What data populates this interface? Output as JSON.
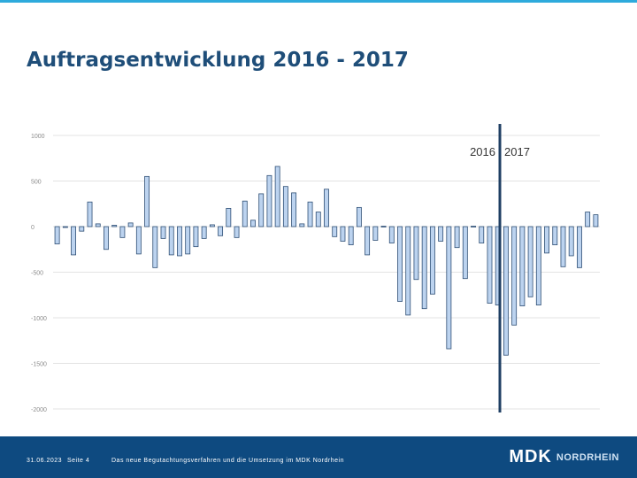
{
  "slide": {
    "title": "Auftragsentwicklung 2016 - 2017"
  },
  "footer": {
    "date": "31.06.2023",
    "page": "Seite 4",
    "description": "Das neue Begutachtungsverfahren und die Umsetzung im MDK Nordrhein",
    "logo_mark": "MDK",
    "logo_text": "NORDRHEIN"
  },
  "colors": {
    "title": "#1f4e79",
    "bar_fill": "#bcd3ef",
    "bar_stroke": "#2f4f75",
    "divider": "#1f3f63",
    "footer": "#0e4a80",
    "accent": "#2eaadc"
  },
  "chart_data": {
    "type": "bar",
    "title": "",
    "xlabel": "",
    "ylabel": "",
    "ylim": [
      -2000,
      1000
    ],
    "yticks": [
      1000,
      500,
      0,
      -500,
      -1000,
      -1500,
      -2000
    ],
    "ytick_labels": [
      "1000",
      "500",
      "0",
      "-500",
      "-1000",
      "-1500",
      "-2000"
    ],
    "grid": true,
    "divider_after_index": 54,
    "annotations": [
      "2016",
      "2017"
    ],
    "values": [
      -190,
      0,
      -310,
      -50,
      270,
      30,
      -250,
      15,
      -120,
      40,
      -300,
      550,
      -450,
      -130,
      -310,
      -320,
      -300,
      -220,
      -130,
      20,
      -100,
      200,
      -120,
      280,
      70,
      360,
      560,
      660,
      440,
      370,
      30,
      270,
      160,
      410,
      -110,
      -160,
      -200,
      210,
      -310,
      -150,
      5,
      -180,
      -820,
      -970,
      -580,
      -900,
      -740,
      -160,
      -1340,
      -230,
      -570,
      5,
      -180,
      -840,
      -860,
      -1410,
      -1080,
      -870,
      -770,
      -860,
      -290,
      -200,
      -440,
      -320,
      -450,
      160,
      130
    ]
  }
}
